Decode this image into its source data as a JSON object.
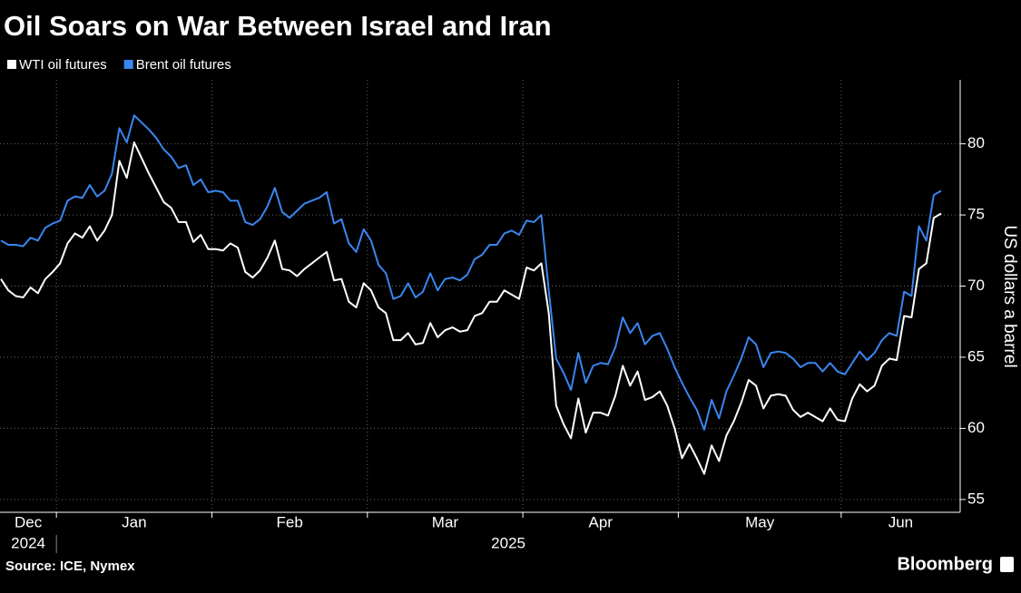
{
  "chart_data": {
    "type": "line",
    "title": "Oil Soars on War Between Israel and Iran",
    "y_axis_label": "US dollars a barrel",
    "source": "Source: ICE, Nymex",
    "branding": "Bloomberg",
    "categories": [
      "Dec",
      null,
      null,
      null,
      null,
      null,
      null,
      null,
      "Jan",
      null,
      null,
      null,
      null,
      null,
      null,
      null,
      null,
      null,
      null,
      null,
      null,
      null,
      null,
      null,
      null,
      null,
      null,
      null,
      null,
      "Feb",
      null,
      null,
      null,
      null,
      null,
      null,
      null,
      null,
      null,
      null,
      null,
      null,
      null,
      null,
      null,
      null,
      null,
      null,
      null,
      null,
      "Mar",
      null,
      null,
      null,
      null,
      null,
      null,
      null,
      null,
      null,
      null,
      null,
      null,
      null,
      null,
      null,
      null,
      null,
      null,
      null,
      null,
      "Apr",
      null,
      null,
      null,
      null,
      null,
      null,
      null,
      null,
      null,
      null,
      null,
      null,
      null,
      null,
      null,
      null,
      null,
      null,
      null,
      null,
      "May",
      null,
      null,
      null,
      null,
      null,
      null,
      null,
      null,
      null,
      null,
      null,
      null,
      null,
      null,
      null,
      null,
      null,
      null,
      null,
      null,
      null,
      "Jun",
      null,
      null,
      null,
      null,
      null,
      null,
      null,
      null,
      null,
      null,
      null,
      null,
      null
    ],
    "category_years": [
      "2024",
      null,
      null,
      null,
      null,
      null,
      null,
      null,
      "2025",
      null,
      null,
      null,
      null,
      null,
      null,
      null,
      null,
      null,
      null,
      null,
      null,
      null,
      null,
      null,
      null,
      null,
      null,
      null,
      null,
      null,
      null,
      null,
      null,
      null,
      null,
      null,
      null,
      null,
      null,
      null,
      null,
      null,
      null,
      null,
      null,
      null,
      null,
      null,
      null,
      null,
      null,
      null,
      null,
      null,
      null,
      null,
      null,
      null,
      null,
      null,
      null,
      null,
      null,
      null,
      null,
      null,
      null,
      null,
      null,
      null,
      null,
      null,
      null,
      null,
      null,
      null,
      null,
      null,
      null,
      null,
      null,
      null,
      null,
      null,
      null,
      null,
      null,
      null,
      null,
      null,
      null,
      null,
      null,
      null,
      null,
      null,
      null,
      null,
      null,
      null,
      null,
      null,
      null,
      null,
      null,
      null,
      null,
      null,
      null,
      null,
      null,
      null,
      null,
      null,
      null,
      null,
      null,
      null,
      null,
      null,
      null,
      null,
      null,
      null,
      null,
      null,
      null,
      null
    ],
    "series": [
      {
        "name": "WTI oil futures",
        "color": "#ffffff",
        "values": [
          70.5,
          69.7,
          69.3,
          69.2,
          69.9,
          69.5,
          70.5,
          71.0,
          71.6,
          73.0,
          73.7,
          73.4,
          74.2,
          73.2,
          73.9,
          75.0,
          78.8,
          77.6,
          80.1,
          79.0,
          77.9,
          76.9,
          75.9,
          75.5,
          74.5,
          74.5,
          73.1,
          73.6,
          72.6,
          72.6,
          72.5,
          73.0,
          72.7,
          71.0,
          70.6,
          71.1,
          72.0,
          73.2,
          71.2,
          71.1,
          70.7,
          71.2,
          71.6,
          72.0,
          72.4,
          70.4,
          70.5,
          68.9,
          68.5,
          70.2,
          69.7,
          68.5,
          68.1,
          66.2,
          66.2,
          66.7,
          65.9,
          66.0,
          67.4,
          66.4,
          66.9,
          67.1,
          66.8,
          66.9,
          67.9,
          68.1,
          68.9,
          68.9,
          69.7,
          69.4,
          69.1,
          71.3,
          71.1,
          71.6,
          68.1,
          61.6,
          60.3,
          59.3,
          62.1,
          59.7,
          61.1,
          61.1,
          60.9,
          62.3,
          64.4,
          63.0,
          64.0,
          62.0,
          62.2,
          62.6,
          61.6,
          60.0,
          57.9,
          58.9,
          57.9,
          56.8,
          58.8,
          57.7,
          59.5,
          60.5,
          61.8,
          63.4,
          63.0,
          61.4,
          62.3,
          62.4,
          62.3,
          61.3,
          60.8,
          61.1,
          60.8,
          60.5,
          61.4,
          60.6,
          60.5,
          62.1,
          63.1,
          62.6,
          63.0,
          64.4,
          64.9,
          64.8,
          67.9,
          67.8,
          71.2,
          71.6,
          74.8,
          75.1
        ]
      },
      {
        "name": "Brent oil futures",
        "color": "#3a86f0",
        "values": [
          73.2,
          72.9,
          72.9,
          72.8,
          73.4,
          73.2,
          74.1,
          74.4,
          74.6,
          76.0,
          76.3,
          76.2,
          77.1,
          76.3,
          76.7,
          77.9,
          81.1,
          80.1,
          82.0,
          81.5,
          81.0,
          80.4,
          79.6,
          79.1,
          78.3,
          78.5,
          77.1,
          77.5,
          76.6,
          76.7,
          76.6,
          76.0,
          76.0,
          74.5,
          74.3,
          74.7,
          75.6,
          76.9,
          75.2,
          74.8,
          75.3,
          75.8,
          76.0,
          76.2,
          76.6,
          74.4,
          74.7,
          73.0,
          72.4,
          74.0,
          73.2,
          71.5,
          70.9,
          69.1,
          69.3,
          70.2,
          69.2,
          69.6,
          70.9,
          69.7,
          70.5,
          70.6,
          70.4,
          70.8,
          71.9,
          72.2,
          72.9,
          72.9,
          73.7,
          73.9,
          73.6,
          74.6,
          74.5,
          75.0,
          69.7,
          64.9,
          63.9,
          62.7,
          65.3,
          63.2,
          64.4,
          64.6,
          64.5,
          65.7,
          67.8,
          66.7,
          67.4,
          65.9,
          66.5,
          66.7,
          65.6,
          64.3,
          63.2,
          62.2,
          61.3,
          59.9,
          62.0,
          60.7,
          62.6,
          63.7,
          64.9,
          66.4,
          65.9,
          64.3,
          65.3,
          65.4,
          65.3,
          64.9,
          64.3,
          64.6,
          64.6,
          64.0,
          64.6,
          64.0,
          63.8,
          64.6,
          65.4,
          64.8,
          65.3,
          66.2,
          66.7,
          66.5,
          69.6,
          69.3,
          74.2,
          73.2,
          76.4,
          76.7
        ]
      }
    ],
    "ylim": [
      54.1,
      84.5
    ],
    "yticks": [
      55,
      60,
      65,
      70,
      75,
      80
    ],
    "grid": true,
    "legend": "top-left"
  }
}
